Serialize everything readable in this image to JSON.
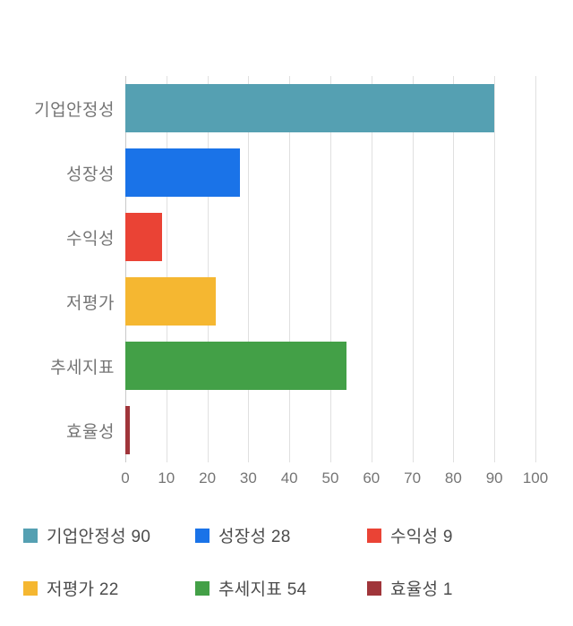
{
  "chart_data": {
    "type": "bar",
    "orientation": "horizontal",
    "title": "",
    "xlabel": "",
    "ylabel": "",
    "categories": [
      "기업안정성",
      "성장성",
      "수익성",
      "저평가",
      "추세지표",
      "효율성"
    ],
    "values": [
      90,
      28,
      9,
      22,
      54,
      1
    ],
    "colors": [
      "#55A0B2",
      "#1A73E8",
      "#EA4335",
      "#F5B731",
      "#43A047",
      "#A0353A"
    ],
    "xlim": [
      0,
      100
    ],
    "x_ticks": [
      0,
      10,
      20,
      30,
      40,
      50,
      60,
      70,
      80,
      90,
      100
    ],
    "grid": true,
    "legend_position": "bottom"
  },
  "legend": {
    "items": [
      {
        "label": "기업안정성 90",
        "color": "#55A0B2"
      },
      {
        "label": "성장성 28",
        "color": "#1A73E8"
      },
      {
        "label": "수익성 9",
        "color": "#EA4335"
      },
      {
        "label": "저평가 22",
        "color": "#F5B731"
      },
      {
        "label": "추세지표 54",
        "color": "#43A047"
      },
      {
        "label": "효율성 1",
        "color": "#A0353A"
      }
    ]
  }
}
